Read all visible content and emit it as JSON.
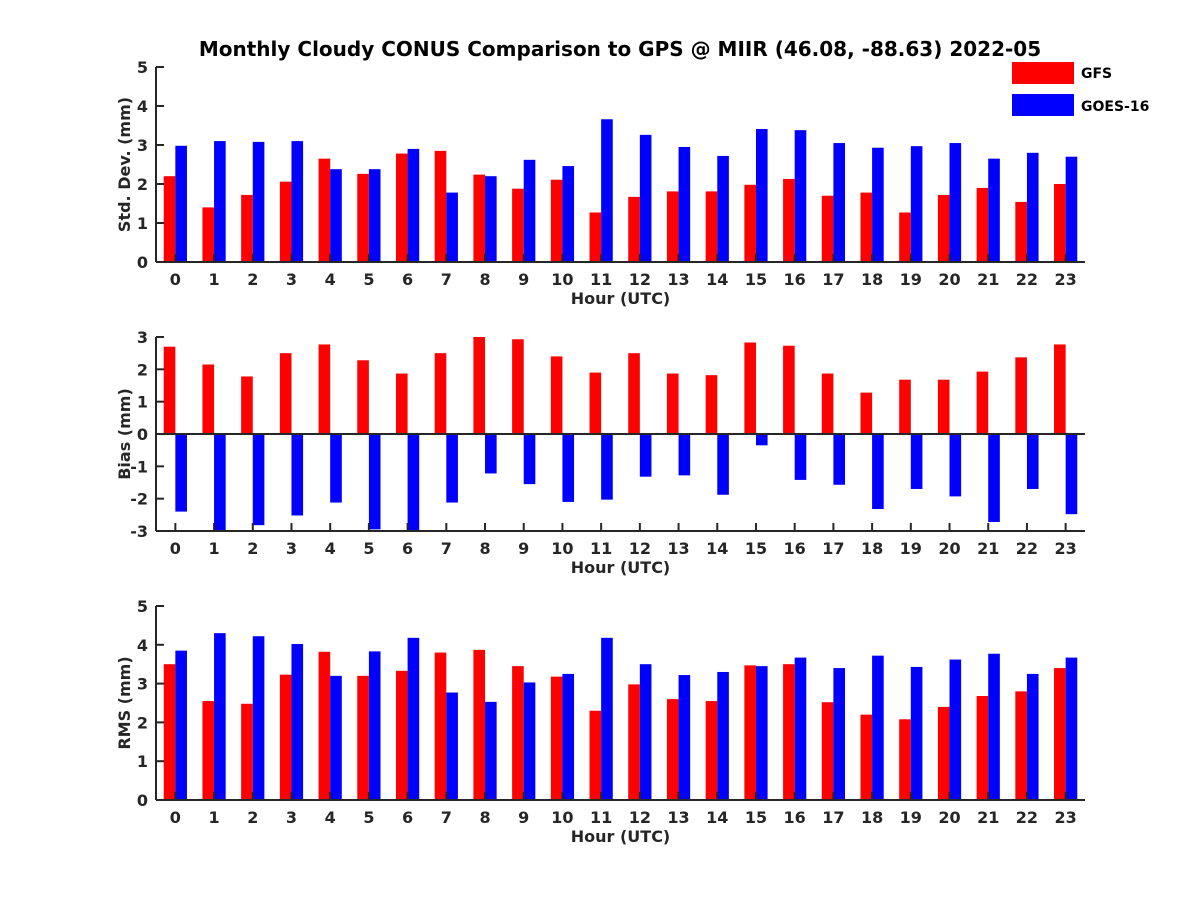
{
  "figure_title": "Monthly Cloudy CONUS Comparison to GPS @ MIIR (46.08, -88.63) 2022-05",
  "colors": {
    "GFS": "#ff0000",
    "GOES-16": "#0000ff"
  },
  "legend": {
    "placement": "top-right",
    "entries": [
      "GFS",
      "GOES-16"
    ]
  },
  "chart_data": [
    {
      "type": "bar",
      "xlabel": "Hour (UTC)",
      "ylabel": "Std. Dev. (mm)",
      "ylim": [
        0,
        5
      ],
      "yticks": [
        0,
        1,
        2,
        3,
        4,
        5
      ],
      "grid": false,
      "categories": [
        "0",
        "1",
        "2",
        "3",
        "4",
        "5",
        "6",
        "7",
        "8",
        "9",
        "10",
        "11",
        "12",
        "13",
        "14",
        "15",
        "16",
        "17",
        "18",
        "19",
        "20",
        "21",
        "22",
        "23"
      ],
      "series": [
        {
          "name": "GFS",
          "values": [
            2.2,
            1.4,
            1.72,
            2.06,
            2.65,
            2.26,
            2.78,
            2.85,
            2.24,
            1.88,
            2.11,
            1.27,
            1.67,
            1.81,
            1.81,
            1.98,
            2.13,
            1.7,
            1.78,
            1.27,
            1.72,
            1.9,
            1.54,
            2.0
          ]
        },
        {
          "name": "GOES-16",
          "values": [
            2.98,
            3.1,
            3.08,
            3.1,
            2.38,
            2.38,
            2.9,
            1.78,
            2.2,
            2.62,
            2.46,
            3.66,
            3.26,
            2.95,
            2.72,
            3.41,
            3.38,
            3.05,
            2.93,
            2.97,
            3.05,
            2.65,
            2.8,
            2.7
          ]
        }
      ]
    },
    {
      "type": "bar",
      "xlabel": "Hour (UTC)",
      "ylabel": "Bias (mm)",
      "ylim": [
        -3,
        3
      ],
      "yticks": [
        -3,
        -2,
        -1,
        0,
        1,
        2,
        3
      ],
      "grid": false,
      "categories": [
        "0",
        "1",
        "2",
        "3",
        "4",
        "5",
        "6",
        "7",
        "8",
        "9",
        "10",
        "11",
        "12",
        "13",
        "14",
        "15",
        "16",
        "17",
        "18",
        "19",
        "20",
        "21",
        "22",
        "23"
      ],
      "series": [
        {
          "name": "GFS",
          "values": [
            2.7,
            2.15,
            1.78,
            2.5,
            2.77,
            2.28,
            1.87,
            2.5,
            3.0,
            2.93,
            2.4,
            1.9,
            2.5,
            1.87,
            1.82,
            2.83,
            2.73,
            1.87,
            1.28,
            1.68,
            1.68,
            1.93,
            2.37,
            2.77
          ]
        },
        {
          "name": "GOES-16",
          "values": [
            -2.4,
            -3.0,
            -2.82,
            -2.52,
            -2.12,
            -2.95,
            -3.0,
            -2.12,
            -1.22,
            -1.55,
            -2.1,
            -2.03,
            -1.32,
            -1.28,
            -1.88,
            -0.35,
            -1.42,
            -1.57,
            -2.32,
            -1.7,
            -1.93,
            -2.72,
            -1.7,
            -2.48
          ]
        }
      ]
    },
    {
      "type": "bar",
      "xlabel": "Hour (UTC)",
      "ylabel": "RMS (mm)",
      "ylim": [
        0,
        5
      ],
      "yticks": [
        0,
        1,
        2,
        3,
        4,
        5
      ],
      "grid": false,
      "categories": [
        "0",
        "1",
        "2",
        "3",
        "4",
        "5",
        "6",
        "7",
        "8",
        "9",
        "10",
        "11",
        "12",
        "13",
        "14",
        "15",
        "16",
        "17",
        "18",
        "19",
        "20",
        "21",
        "22",
        "23"
      ],
      "series": [
        {
          "name": "GFS",
          "values": [
            3.5,
            2.55,
            2.48,
            3.23,
            3.82,
            3.2,
            3.33,
            3.8,
            3.87,
            3.45,
            3.18,
            2.3,
            2.98,
            2.6,
            2.55,
            3.47,
            3.5,
            2.52,
            2.2,
            2.08,
            2.4,
            2.68,
            2.8,
            3.4
          ]
        },
        {
          "name": "GOES-16",
          "values": [
            3.85,
            4.3,
            4.22,
            4.02,
            3.2,
            3.83,
            4.18,
            2.77,
            2.53,
            3.03,
            3.25,
            4.18,
            3.5,
            3.22,
            3.3,
            3.45,
            3.67,
            3.4,
            3.72,
            3.43,
            3.62,
            3.77,
            3.25,
            3.67
          ]
        }
      ]
    }
  ]
}
